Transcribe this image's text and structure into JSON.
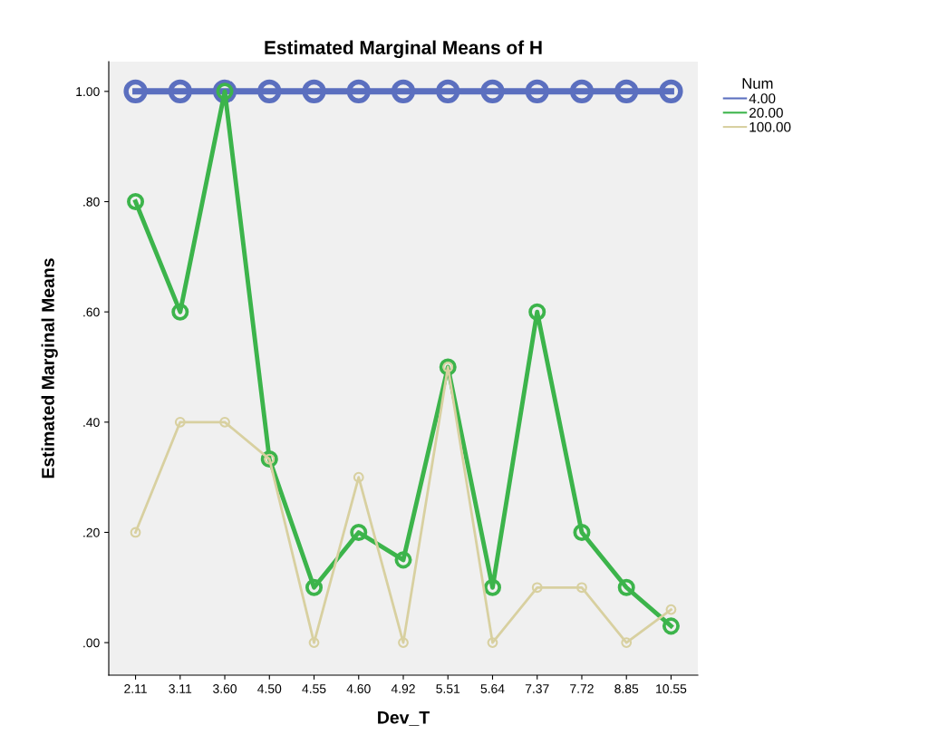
{
  "chart_data": {
    "type": "line",
    "title": "Estimated Marginal Means of H",
    "xlabel": "Dev_T",
    "ylabel": "Estimated Marginal Means",
    "legend_title": "Num",
    "categories": [
      "2.11",
      "3.11",
      "3.60",
      "4.50",
      "4.55",
      "4.60",
      "4.92",
      "5.51",
      "5.64",
      "7.37",
      "7.72",
      "8.85",
      "10.55"
    ],
    "series": [
      {
        "name": "4.00",
        "color": "#5b6fbf",
        "values": [
          1.0,
          1.0,
          1.0,
          1.0,
          1.0,
          1.0,
          1.0,
          1.0,
          1.0,
          1.0,
          1.0,
          1.0,
          1.0
        ]
      },
      {
        "name": "20.00",
        "color": "#3cb44b",
        "values": [
          0.8,
          0.6,
          1.0,
          0.333,
          0.1,
          0.2,
          0.15,
          0.5,
          0.1,
          0.6,
          0.2,
          0.1,
          0.03
        ]
      },
      {
        "name": "100.00",
        "color": "#d8d0a0",
        "values": [
          0.2,
          0.4,
          0.4,
          0.333,
          0.0,
          0.3,
          0.0,
          0.5,
          0.0,
          0.1,
          0.1,
          0.0,
          0.06
        ]
      }
    ],
    "ylim": [
      -0.059,
      1.054
    ],
    "yticks": [
      {
        "value": 0,
        "label": ".00"
      },
      {
        "value": 0.2,
        "label": ".20"
      },
      {
        "value": 0.4,
        "label": ".40"
      },
      {
        "value": 0.6,
        "label": ".60"
      },
      {
        "value": 0.8,
        "label": ".80"
      },
      {
        "value": 1.0,
        "label": "1.00"
      }
    ],
    "marker": "circle",
    "line_style": "solid",
    "grid": false,
    "legend": "top right"
  }
}
